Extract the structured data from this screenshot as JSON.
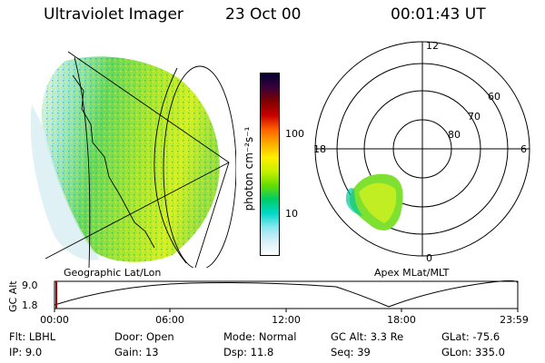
{
  "header": {
    "instrument": "Ultraviolet Imager",
    "date": "23 Oct 00",
    "time": "00:01:43 UT"
  },
  "geo_panel": {
    "label": "Geographic Lat/Lon"
  },
  "polar_panel": {
    "label": "Apex MLat/MLT",
    "mlt_labels": [
      "12",
      "18",
      "6",
      "0"
    ],
    "lat_labels": [
      "60",
      "70",
      "80"
    ]
  },
  "colorbar": {
    "unit_label": "photon cm⁻²s⁻¹",
    "ticks": [
      "100",
      "10"
    ],
    "colors": [
      "#000033",
      "#3a003a",
      "#800000",
      "#c80000",
      "#ff6000",
      "#ffaa00",
      "#ffee00",
      "#c8f000",
      "#66dd00",
      "#00cc66",
      "#00d8c8",
      "#88e8f0",
      "#d8eef8",
      "#ffffff"
    ]
  },
  "altitude_plot": {
    "ylabel": "GC Alt",
    "ymax_label": "9.0",
    "ymin_label": "1.8",
    "xticks": [
      "00:00",
      "06:00",
      "12:00",
      "18:00",
      "23:59"
    ]
  },
  "info": {
    "filter": "Flt: LBHL",
    "ip": "IP:  9.0",
    "door": "Door: Open",
    "gain": "Gain: 13",
    "mode": "Mode: Normal",
    "dsp": "Dsp:   11.8",
    "gc_alt": "GC Alt: 3.3 Re",
    "seq": "Seq: 39",
    "glat": "GLat: -75.6",
    "glon": "GLon: 335.0"
  }
}
